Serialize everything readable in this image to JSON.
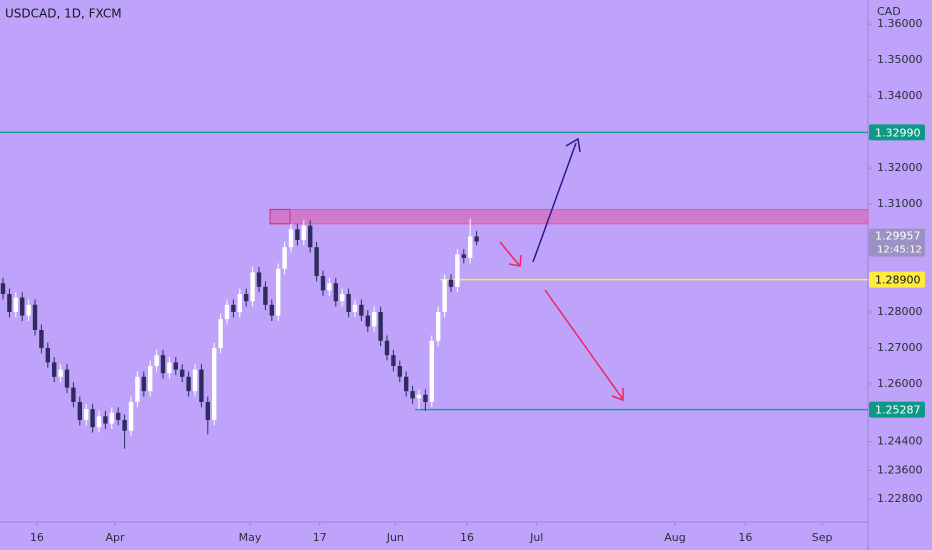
{
  "chart_data": {
    "type": "candlestick",
    "title": "USDCAD, 1D, FXCM",
    "currency": "CAD",
    "open": [
      1.288,
      1.285,
      1.28,
      1.284,
      1.279,
      1.282,
      1.275,
      1.27,
      1.266,
      1.262,
      1.264,
      1.259,
      1.255,
      1.25,
      1.253,
      1.248,
      1.251,
      1.249,
      1.252,
      1.25,
      1.247,
      1.255,
      1.262,
      1.258,
      1.265,
      1.268,
      1.263,
      1.266,
      1.264,
      1.262,
      1.258,
      1.264,
      1.255,
      1.25,
      1.27,
      1.278,
      1.282,
      1.28,
      1.285,
      1.283,
      1.291,
      1.287,
      1.282,
      1.279,
      1.292,
      1.298,
      1.303,
      1.3,
      1.304,
      1.298,
      1.29,
      1.286,
      1.288,
      1.283,
      1.285,
      1.28,
      1.282,
      1.279,
      1.276,
      1.28,
      1.272,
      1.268,
      1.265,
      1.262,
      1.258,
      1.256,
      1.257,
      1.255,
      1.272,
      1.28,
      1.289,
      1.287,
      1.296,
      1.295,
      1.301
    ],
    "high": [
      1.2895,
      1.2865,
      1.2855,
      1.2855,
      1.2835,
      1.2835,
      1.2765,
      1.2715,
      1.2675,
      1.2655,
      1.2655,
      1.2605,
      1.2565,
      1.2545,
      1.2545,
      1.2525,
      1.2525,
      1.2535,
      1.2535,
      1.2515,
      1.2565,
      1.2635,
      1.2635,
      1.2665,
      1.2695,
      1.2695,
      1.2675,
      1.2675,
      1.2655,
      1.2635,
      1.2655,
      1.2655,
      1.2565,
      1.2715,
      1.2795,
      1.2835,
      1.2835,
      1.2865,
      1.2865,
      1.2925,
      1.2925,
      1.2885,
      1.2835,
      1.2935,
      1.2995,
      1.3045,
      1.3045,
      1.3055,
      1.3055,
      1.2995,
      1.2915,
      1.2895,
      1.2895,
      1.2865,
      1.2865,
      1.2835,
      1.2835,
      1.2805,
      1.2815,
      1.2815,
      1.2735,
      1.2695,
      1.2665,
      1.2635,
      1.2595,
      1.2585,
      1.2585,
      1.2735,
      1.2815,
      1.2905,
      1.2905,
      1.2975,
      1.2975,
      1.306,
      1.3025
    ],
    "low": [
      1.2835,
      1.2785,
      1.2785,
      1.2775,
      1.2775,
      1.2735,
      1.2685,
      1.2645,
      1.2605,
      1.2605,
      1.2575,
      1.2535,
      1.2485,
      1.2485,
      1.2465,
      1.2465,
      1.2475,
      1.2475,
      1.2485,
      1.242,
      1.2455,
      1.2535,
      1.2565,
      1.2565,
      1.2635,
      1.2615,
      1.2615,
      1.2625,
      1.2605,
      1.2565,
      1.2565,
      1.2535,
      1.246,
      1.2485,
      1.2685,
      1.2765,
      1.2785,
      1.2785,
      1.2815,
      1.2815,
      1.2855,
      1.2805,
      1.2775,
      1.2775,
      1.2905,
      1.2965,
      1.2985,
      1.2985,
      1.2965,
      1.2885,
      1.2845,
      1.2845,
      1.2815,
      1.2815,
      1.2785,
      1.2785,
      1.2775,
      1.2745,
      1.2745,
      1.2705,
      1.2665,
      1.2635,
      1.2605,
      1.2565,
      1.2545,
      1.253,
      1.2525,
      1.2535,
      1.2705,
      1.2785,
      1.2855,
      1.2855,
      1.2935,
      1.2935,
      1.2985
    ],
    "close": [
      1.285,
      1.28,
      1.284,
      1.279,
      1.282,
      1.275,
      1.27,
      1.266,
      1.262,
      1.264,
      1.259,
      1.255,
      1.25,
      1.253,
      1.248,
      1.251,
      1.249,
      1.252,
      1.25,
      1.247,
      1.255,
      1.262,
      1.258,
      1.265,
      1.268,
      1.263,
      1.266,
      1.264,
      1.262,
      1.258,
      1.264,
      1.255,
      1.25,
      1.27,
      1.278,
      1.282,
      1.28,
      1.285,
      1.283,
      1.291,
      1.287,
      1.282,
      1.279,
      1.292,
      1.298,
      1.303,
      1.3,
      1.304,
      1.298,
      1.29,
      1.286,
      1.288,
      1.283,
      1.285,
      1.28,
      1.282,
      1.279,
      1.276,
      1.28,
      1.272,
      1.268,
      1.265,
      1.262,
      1.258,
      1.256,
      1.257,
      1.255,
      1.272,
      1.28,
      1.289,
      1.287,
      1.296,
      1.295,
      1.301,
      1.29957
    ],
    "up_color": "#ffffff",
    "down_color": "#2e2b5f",
    "xlim": [
      -0.47,
      135.16
    ],
    "ylim": [
      1.2222,
      1.3667
    ],
    "xticks": [
      {
        "value": 5.3,
        "label": "16"
      },
      {
        "value": 17.5,
        "label": "Apr"
      },
      {
        "value": 38.6,
        "label": "May"
      },
      {
        "value": 49.5,
        "label": "17"
      },
      {
        "value": 61.3,
        "label": "Jun"
      },
      {
        "value": 72.5,
        "label": "16"
      },
      {
        "value": 83.4,
        "label": "Jul"
      },
      {
        "value": 105,
        "label": "Aug"
      },
      {
        "value": 116,
        "label": "16"
      },
      {
        "value": 128,
        "label": "Sep"
      }
    ],
    "yticks": [
      {
        "value": 1.36,
        "label": "1.36000"
      },
      {
        "value": 1.35,
        "label": "1.35000"
      },
      {
        "value": 1.34,
        "label": "1.34000"
      },
      {
        "value": 1.32,
        "label": "1.32000"
      },
      {
        "value": 1.31,
        "label": "1.31000"
      },
      {
        "value": 1.28,
        "label": "1.28000"
      },
      {
        "value": 1.27,
        "label": "1.27000"
      },
      {
        "value": 1.26,
        "label": "1.26000"
      },
      {
        "value": 1.244,
        "label": "1.24400"
      },
      {
        "value": 1.236,
        "label": "1.23600"
      },
      {
        "value": 1.228,
        "label": "1.22800"
      }
    ],
    "price_lines": [
      {
        "value": 1.3299,
        "label": "1.32990",
        "color": "#1f9e96"
      },
      {
        "value": 1.289,
        "label": "1.28900",
        "color": "#ffeb3b"
      },
      {
        "value": 1.25287,
        "label": "1.25287",
        "color": "#1f9e96"
      }
    ],
    "zone": {
      "low": 1.3045,
      "high": 1.3085,
      "color": "#e05aa8"
    },
    "last_price": {
      "value": 1.29957,
      "label": "1.29957"
    },
    "countdown": "12:45:12"
  }
}
